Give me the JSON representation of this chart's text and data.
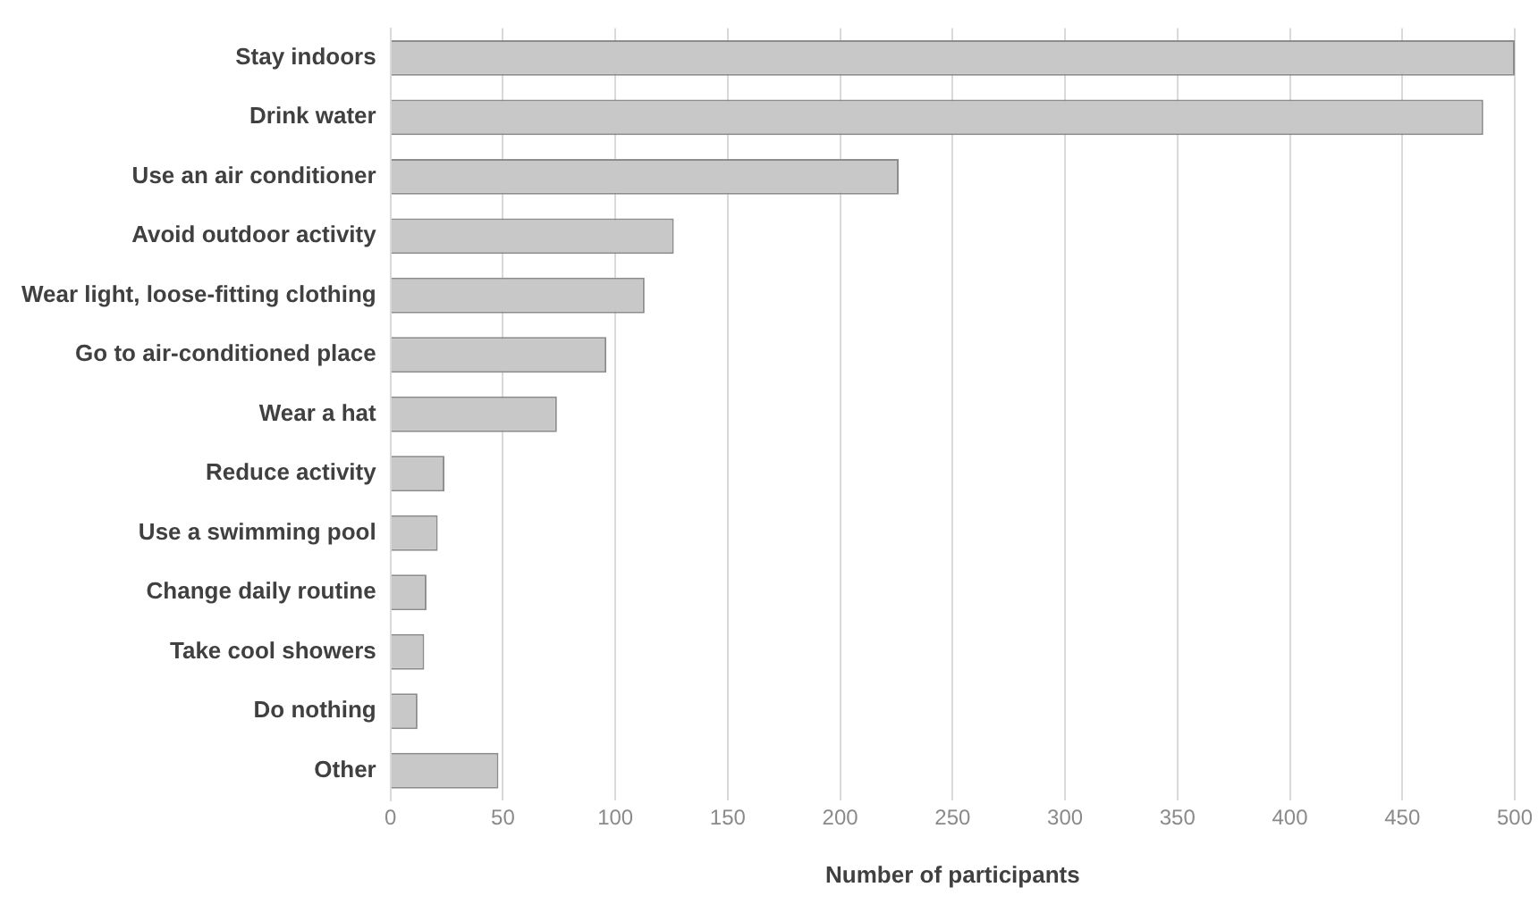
{
  "chart_data": {
    "type": "bar",
    "orientation": "horizontal",
    "xlabel": "Number of participants",
    "categories": [
      "Stay indoors",
      "Drink water",
      "Use an air conditioner",
      "Avoid outdoor activity",
      "Wear light, loose-fitting clothing",
      "Go to air-conditioned place",
      "Wear a hat",
      "Reduce activity",
      "Use a swimming pool",
      "Change daily routine",
      "Take cool showers",
      "Do nothing",
      "Other"
    ],
    "values": [
      500,
      486,
      226,
      126,
      113,
      96,
      74,
      24,
      21,
      16,
      15,
      12,
      48
    ],
    "color": "#c8c8c8",
    "xlim": [
      0,
      500
    ],
    "xticks": [
      0,
      50,
      100,
      150,
      200,
      250,
      300,
      350,
      400,
      450,
      500
    ],
    "grid": "x",
    "legend": false
  }
}
